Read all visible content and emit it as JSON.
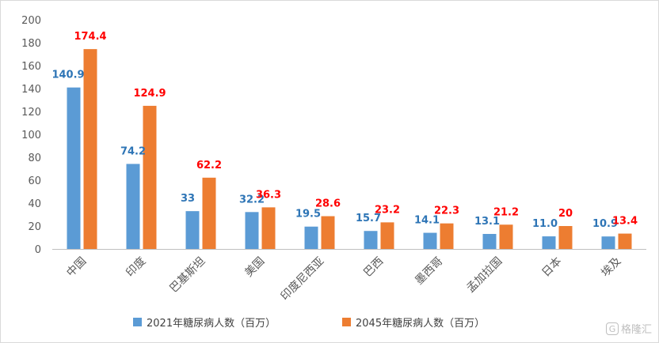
{
  "chart_data": {
    "type": "bar",
    "categories": [
      "中国",
      "印度",
      "巴基斯坦",
      "美国",
      "印度尼西亚",
      "巴西",
      "墨西哥",
      "孟加拉国",
      "日本",
      "埃及"
    ],
    "series": [
      {
        "name": "2021年糖尿病人数（百万）",
        "color": "#5b9bd5",
        "labelColor": "#2e75b6",
        "values": [
          140.9,
          74.2,
          33,
          32.2,
          19.5,
          15.7,
          14.1,
          13.1,
          11.0,
          10.9
        ],
        "labels": [
          "140.9",
          "74.2",
          "33",
          "32.2",
          "19.5",
          "15.7",
          "14.1",
          "13.1",
          "11.0",
          "10.9"
        ]
      },
      {
        "name": "2045年糖尿病人数（百万）",
        "color": "#ed7d31",
        "labelColor": "#ff0000",
        "values": [
          174.4,
          124.9,
          62.2,
          36.3,
          28.6,
          23.2,
          22.3,
          21.2,
          20,
          13.4
        ],
        "labels": [
          "174.4",
          "124.9",
          "62.2",
          "36.3",
          "28.6",
          "23.2",
          "22.3",
          "21.2",
          "20",
          "13.4"
        ]
      }
    ],
    "yticks": [
      "0",
      "20",
      "40",
      "60",
      "80",
      "100",
      "120",
      "140",
      "160",
      "180",
      "200"
    ],
    "ylim": [
      0,
      200
    ],
    "grid": false,
    "legend": "bottom"
  },
  "watermark": {
    "icon": "G",
    "text": "格隆汇"
  }
}
